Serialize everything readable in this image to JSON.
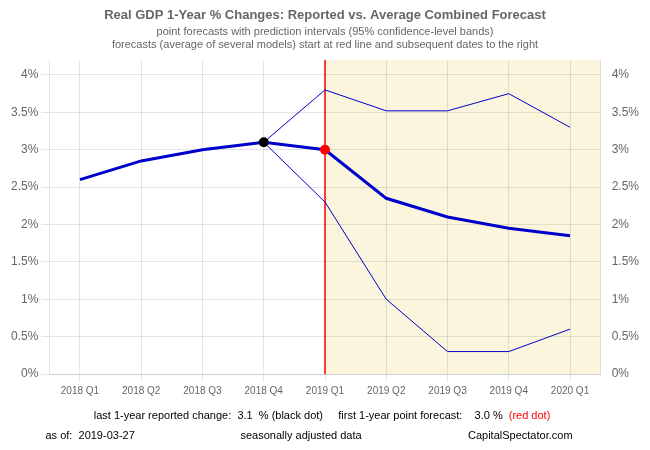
{
  "chart_data": {
    "type": "line",
    "title": "Real GDP 1-Year % Changes: Reported vs. Average Combined Forecast",
    "subtitle": [
      "point forecasts with prediction intervals (95% confidence-level bands)",
      "forecasts (average of several models) start at red line and subsequent dates to the right"
    ],
    "categories": [
      "2018 Q1",
      "2018 Q2",
      "2018 Q3",
      "2018 Q4",
      "2019 Q1",
      "2019 Q2",
      "2019 Q3",
      "2019 Q4",
      "2020 Q1"
    ],
    "series": [
      {
        "color": "#0000CC",
        "line_style": "solid",
        "marker": "none",
        "values": [
          null,
          null,
          null,
          3.1,
          3.8,
          3.52,
          3.52,
          3.75,
          3.3
        ]
      },
      {
        "color": "#0000CC",
        "line_style": "solid",
        "marker": "none",
        "values": [
          null,
          null,
          null,
          3.1,
          2.3,
          1.0,
          0.3,
          0.3,
          0.6
        ]
      },
      {
        "color": "#0000CC",
        "line_style": "solid",
        "marker": "none",
        "values": [
          2.6,
          2.85,
          3.0,
          3.1,
          3.0,
          null,
          null,
          null,
          null
        ]
      },
      {
        "color": "#0000CC",
        "line_style": "solid",
        "marker": "none",
        "values": [
          null,
          null,
          null,
          null,
          3.0,
          2.35,
          2.1,
          1.95,
          1.85
        ]
      },
      {
        "color": "black",
        "line_style": "none",
        "marker": "circle",
        "values": [
          null,
          null,
          null,
          3.1,
          null,
          null,
          null,
          null,
          null
        ]
      },
      {
        "color": "red",
        "line_style": "none",
        "marker": "circle",
        "values": [
          null,
          null,
          null,
          null,
          3.0,
          null,
          null,
          null,
          null
        ]
      }
    ],
    "vline": {
      "x": "2019 Q1",
      "color": "#FF0000"
    },
    "shade": {
      "from": "2019 Q1",
      "color": "#FAF5DC"
    },
    "ylim": [
      0,
      4.2
    ],
    "yticks": [
      {
        "value": 0.0,
        "label": "0%"
      },
      {
        "value": 0.5,
        "label": "0.5%"
      },
      {
        "value": 1.0,
        "label": "1%"
      },
      {
        "value": 1.5,
        "label": "1.5%"
      },
      {
        "value": 2.0,
        "label": "2%"
      },
      {
        "value": 2.5,
        "label": "2.5%"
      },
      {
        "value": 3.0,
        "label": "3%"
      },
      {
        "value": 3.5,
        "label": "3.5%"
      },
      {
        "value": 4.0,
        "label": "4%"
      }
    ],
    "y2lim": [
      0,
      4.2
    ],
    "y2ticks": [
      {
        "value": 0.0,
        "label": "0%"
      },
      {
        "value": 0.5,
        "label": "0.5%"
      },
      {
        "value": 1.0,
        "label": "1%"
      },
      {
        "value": 1.5,
        "label": "1.5%"
      },
      {
        "value": 2.0,
        "label": "2%"
      },
      {
        "value": 2.5,
        "label": "2.5%"
      },
      {
        "value": 3.0,
        "label": "3%"
      },
      {
        "value": 3.5,
        "label": "3.5%"
      },
      {
        "value": 4.0,
        "label": "4%"
      }
    ],
    "grid": true,
    "annotations": [
      [
        {
          "text": "last 1-year reported change:  3.1  % (black dot)     first 1-year point forecast:    3.0 %",
          "color": "black"
        },
        {
          "text": "(red dot)",
          "color": "red"
        }
      ],
      [
        {
          "text": "as of:  2019-03-27",
          "color": "black"
        },
        {
          "text": "seasonally adjusted data",
          "color": "black"
        },
        {
          "text": "CapitalSpectator.com",
          "color": "black"
        }
      ]
    ]
  }
}
